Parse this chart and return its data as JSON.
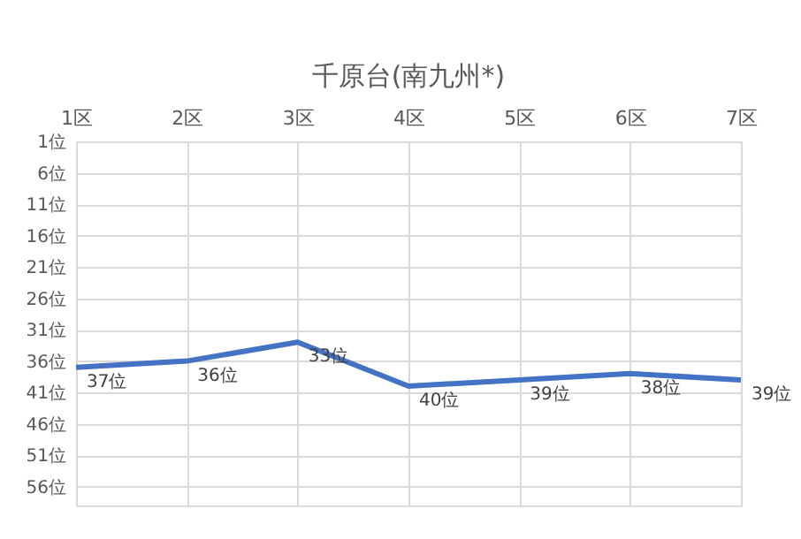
{
  "chart_data": {
    "type": "line",
    "title": "千原台(南九州*)",
    "categories": [
      "1区",
      "2区",
      "3区",
      "4区",
      "5区",
      "6区",
      "7区"
    ],
    "series": [
      {
        "color": "#4472c4",
        "values": [
          37,
          36,
          33,
          40,
          39,
          38,
          39
        ],
        "value_labels": [
          "37位",
          "36位",
          "33位",
          "40位",
          "39位",
          "38位",
          "39位"
        ]
      }
    ],
    "ylim": [
      59,
      1
    ],
    "yticks": [
      {
        "value": 1,
        "label": "1位"
      },
      {
        "value": 6,
        "label": "6位"
      },
      {
        "value": 11,
        "label": "11位"
      },
      {
        "value": 16,
        "label": "16位"
      },
      {
        "value": 21,
        "label": "21位"
      },
      {
        "value": 26,
        "label": "26位"
      },
      {
        "value": 31,
        "label": "31位"
      },
      {
        "value": 36,
        "label": "36位"
      },
      {
        "value": 41,
        "label": "41位"
      },
      {
        "value": 46,
        "label": "46位"
      },
      {
        "value": 51,
        "label": "51位"
      },
      {
        "value": 56,
        "label": "56位"
      }
    ],
    "grid": true,
    "marker": "none",
    "line_style": "solid"
  }
}
